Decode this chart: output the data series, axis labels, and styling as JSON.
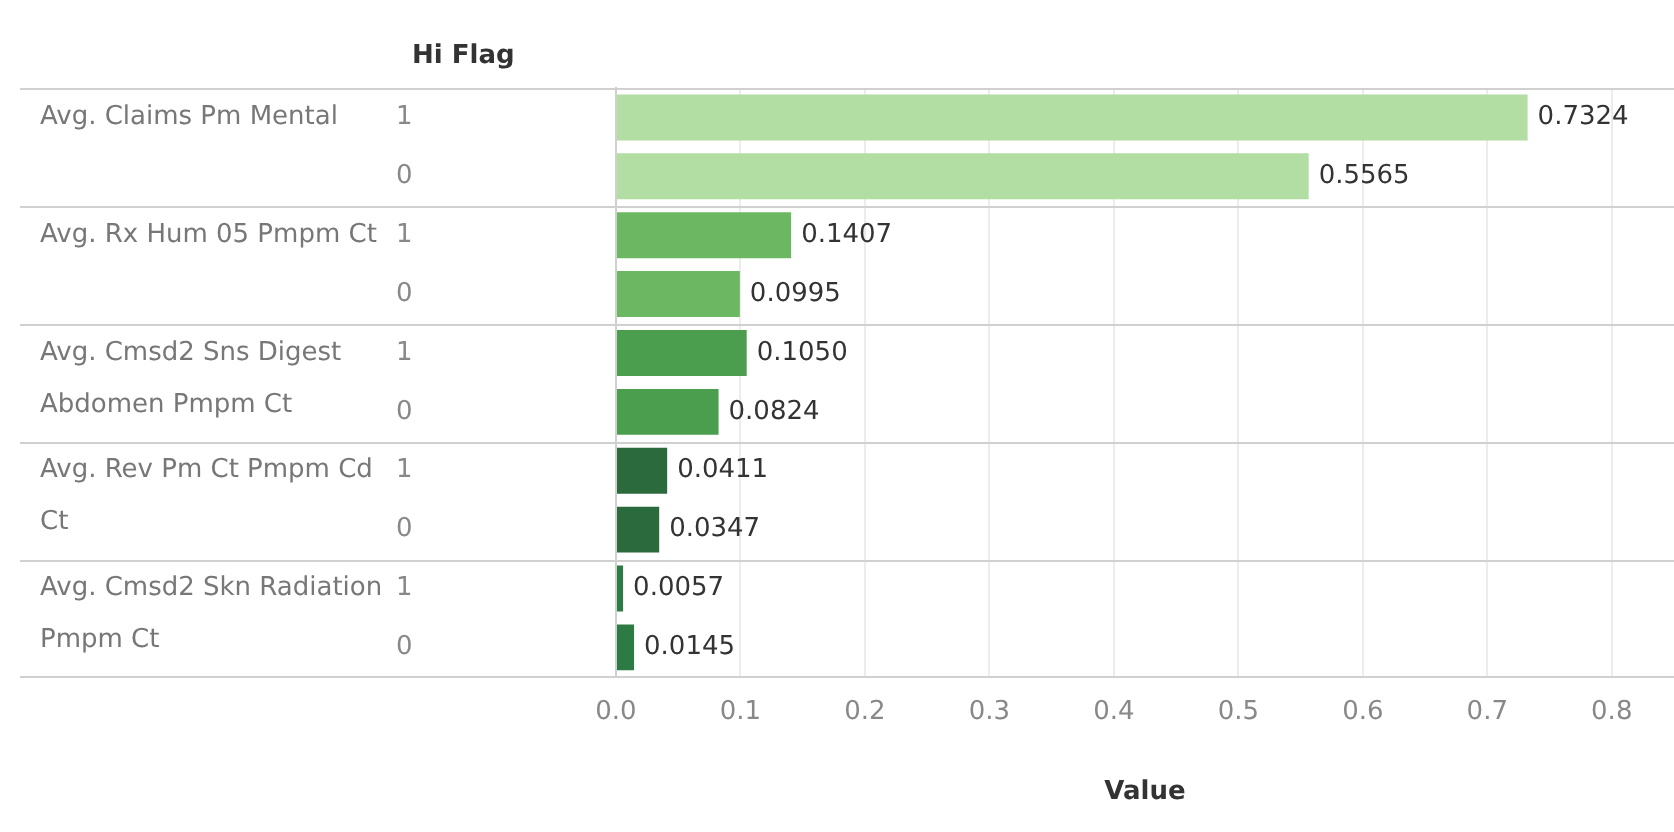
{
  "chart_data": {
    "type": "bar",
    "orientation": "horizontal",
    "ylabel": "Hi Flag",
    "xlabel": "Value",
    "categories": [
      "1",
      "0",
      "1",
      "0",
      "1",
      "0",
      "1",
      "0",
      "1",
      "0"
    ],
    "annotations": [
      "Avg. Claims Pm Mental",
      "Avg. Rx Hum 05 Pmpm Ct",
      "Avg. Cmsd2 Sns Digest Abdomen Pmpm Ct",
      "Avg. Rev Pm Ct Pmpm Cd Ct",
      "Avg. Cmsd2 Skn Radiation Pmpm Ct"
    ],
    "values": [
      0.7324,
      0.5565,
      0.1407,
      0.0995,
      0.105,
      0.0824,
      0.0411,
      0.0347,
      0.0057,
      0.0145
    ],
    "value_labels": [
      "0.7324",
      "0.5565",
      "0.1407",
      "0.0995",
      "0.1050",
      "0.0824",
      "0.0411",
      "0.0347",
      "0.0057",
      "0.0145"
    ],
    "colors": [
      "#b3dea3",
      "#b3dea3",
      "#6cb862",
      "#6cb862",
      "#4a9e4e",
      "#4a9e4e",
      "#2a6a3c",
      "#2a6a3c",
      "#2e7a45",
      "#2e7a45"
    ],
    "xlim": [
      0,
      0.85
    ],
    "xticks": [
      {
        "value": 0,
        "label": "0.0"
      },
      0.1,
      0.2,
      0.3,
      0.4,
      0.5,
      0.6,
      0.7,
      0.8
    ],
    "grid": "x"
  }
}
